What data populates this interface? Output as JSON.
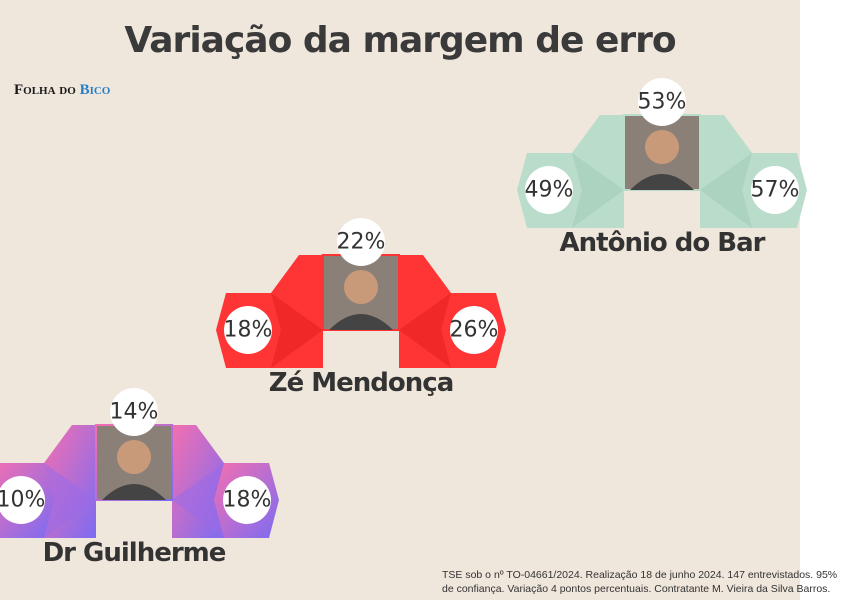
{
  "header": {
    "title": "Variação da margem de erro",
    "logo": {
      "main": "Folha do",
      "accent": "Bico"
    }
  },
  "candidates": [
    {
      "name": "Antônio do Bar",
      "estimate": "53%",
      "low": "49%",
      "high": "57%"
    },
    {
      "name": "Zé Mendonça",
      "estimate": "22%",
      "low": "18%",
      "high": "26%"
    },
    {
      "name": "Dr Guilherme",
      "estimate": "14%",
      "low": "10%",
      "high": "18%"
    }
  ],
  "footer": {
    "line1": "TSE sob o nº TO-04661/2024. Realização 18 de junho 2024. 147 entrevistados. 95%",
    "line2": "de confiança. Variação 4 pontos percentuais. Contratante M. Vieira da Silva Barros."
  }
}
